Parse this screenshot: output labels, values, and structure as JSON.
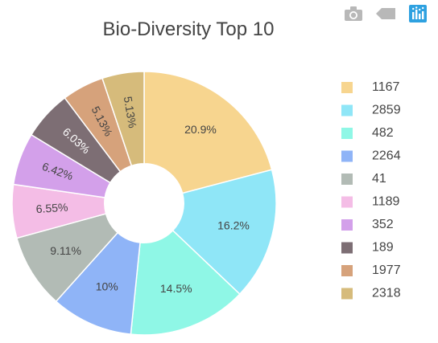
{
  "toolbar": {
    "camera_icon": "camera-icon",
    "tag_icon": "tag-icon",
    "logo_icon": "plotly-logo-icon",
    "icon_color": "#b8b8b8",
    "logo_color": "#2ea1e0"
  },
  "chart_data": {
    "type": "pie",
    "hole": 0.3,
    "title": "Bio-Diversity Top 10",
    "legend_position": "right",
    "slices": [
      {
        "label": "1167",
        "value": 20.9,
        "text": "20.9%",
        "color": "#f7d58f",
        "text_color": "#444444"
      },
      {
        "label": "2859",
        "value": 16.2,
        "text": "16.2%",
        "color": "#8fe6f7",
        "text_color": "#444444"
      },
      {
        "label": "482",
        "value": 14.5,
        "text": "14.5%",
        "color": "#8ff7e6",
        "text_color": "#444444"
      },
      {
        "label": "2264",
        "value": 10,
        "text": "10%",
        "color": "#8fb4f7",
        "text_color": "#444444"
      },
      {
        "label": "41",
        "value": 9.11,
        "text": "9.11%",
        "color": "#b2bbb5",
        "text_color": "#444444"
      },
      {
        "label": "1189",
        "value": 6.55,
        "text": "6.55%",
        "color": "#f4bde6",
        "text_color": "#444444"
      },
      {
        "label": "352",
        "value": 6.42,
        "text": "6.42%",
        "color": "#d3a0ea",
        "text_color": "#444444"
      },
      {
        "label": "189",
        "value": 6.03,
        "text": "6.03%",
        "color": "#7d6e74",
        "text_color": "#ffffff"
      },
      {
        "label": "1977",
        "value": 5.13,
        "text": "5.13%",
        "color": "#d6a27b",
        "text_color": "#444444"
      },
      {
        "label": "2318",
        "value": 5.13,
        "text": "5.13%",
        "color": "#d6bb7b",
        "text_color": "#444444"
      }
    ]
  }
}
